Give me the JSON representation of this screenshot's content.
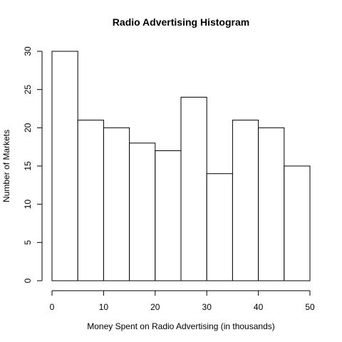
{
  "chart_data": {
    "type": "bar",
    "title": "Radio Advertising Histogram",
    "xlabel": "Money Spent on Radio Advertising (in thousands)",
    "ylabel": "Number of Markets",
    "bins": [
      [
        0,
        5
      ],
      [
        5,
        10
      ],
      [
        10,
        15
      ],
      [
        15,
        20
      ],
      [
        20,
        25
      ],
      [
        25,
        30
      ],
      [
        30,
        35
      ],
      [
        35,
        40
      ],
      [
        40,
        45
      ],
      [
        45,
        50
      ]
    ],
    "values": [
      30,
      21,
      20,
      18,
      17,
      24,
      14,
      21,
      20,
      15
    ],
    "xlim": [
      0,
      50
    ],
    "ylim": [
      0,
      30
    ],
    "x_ticks": [
      "0",
      "10",
      "20",
      "30",
      "40",
      "50"
    ],
    "y_ticks": [
      "0",
      "5",
      "10",
      "15",
      "20",
      "25",
      "30"
    ],
    "grid": false,
    "legend": "none"
  }
}
